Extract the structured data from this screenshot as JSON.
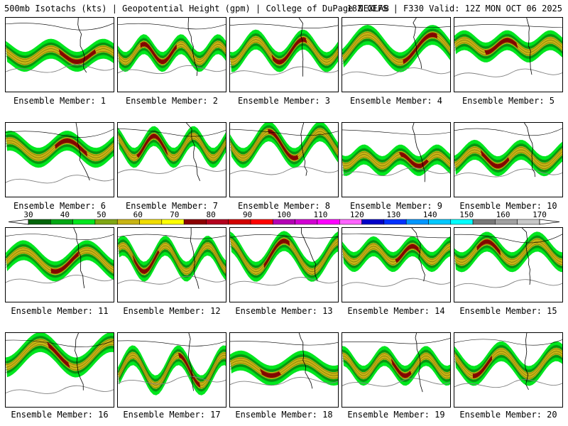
{
  "header": {
    "title_left": "500mb Isotachs (kts) | Geopotential Height (gpm) | College of DuPage NEXLAB",
    "title_right": "18Z GEFS | F330 Valid: 12Z MON OCT 06 2025"
  },
  "panels": [
    {
      "label": "Ensemble Member: 1"
    },
    {
      "label": "Ensemble Member: 2"
    },
    {
      "label": "Ensemble Member: 3"
    },
    {
      "label": "Ensemble Member: 4"
    },
    {
      "label": "Ensemble Member: 5"
    },
    {
      "label": "Ensemble Member: 6"
    },
    {
      "label": "Ensemble Member: 7"
    },
    {
      "label": "Ensemble Member: 8"
    },
    {
      "label": "Ensemble Member: 9"
    },
    {
      "label": "Ensemble Member: 10"
    },
    {
      "label": "Ensemble Member: 11"
    },
    {
      "label": "Ensemble Member: 12"
    },
    {
      "label": "Ensemble Member: 13"
    },
    {
      "label": "Ensemble Member: 14"
    },
    {
      "label": "Ensemble Member: 15"
    },
    {
      "label": "Ensemble Member: 16"
    },
    {
      "label": "Ensemble Member: 17"
    },
    {
      "label": "Ensemble Member: 18"
    },
    {
      "label": "Ensemble Member: 19"
    },
    {
      "label": "Ensemble Member: 20"
    }
  ],
  "colorbar": {
    "ticks": [
      "30",
      "40",
      "50",
      "60",
      "70",
      "80",
      "90",
      "100",
      "110",
      "120",
      "130",
      "140",
      "150",
      "160",
      "170"
    ],
    "colors": [
      "#00640a",
      "#00a614",
      "#00e61e",
      "#7fa614",
      "#c8b414",
      "#f0dc00",
      "#ffff00",
      "#8b0000",
      "#b4001e",
      "#d20000",
      "#ff0000",
      "#b400b4",
      "#d200d2",
      "#ff00ff",
      "#ff64ff",
      "#0000c8",
      "#0032ff",
      "#0096ff",
      "#00c8ff",
      "#00ffff",
      "#787878",
      "#a0a0a0",
      "#c8c8c8"
    ]
  }
}
